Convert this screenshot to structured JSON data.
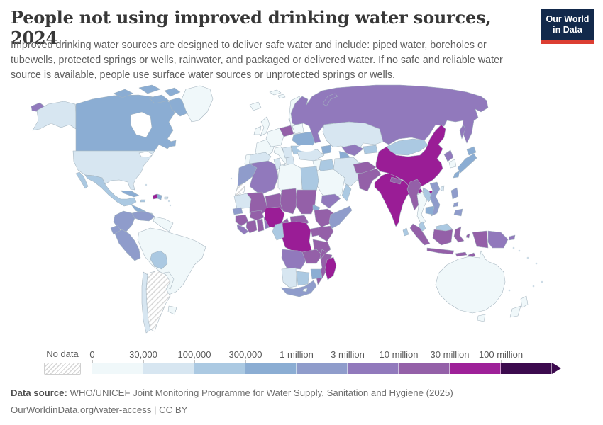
{
  "header": {
    "title": "People not using improved drinking water sources, 2024",
    "subtitle": "Improved drinking water sources are designed to deliver safe water and include: piped water, boreholes or tubewells, protected springs or wells, rainwater, and packaged or delivered water. If no safe and reliable water source is available, people use surface water sources or unprotected springs or wells.",
    "logo": {
      "line1": "Our World",
      "line2": "in Data",
      "bg_color": "#12294b",
      "accent_color": "#dc3e32"
    }
  },
  "legend": {
    "no_data_label": "No data",
    "bins": [
      {
        "label": "0",
        "color": "#f0f8fa"
      },
      {
        "label": "30,000",
        "color": "#d7e6f1"
      },
      {
        "label": "100,000",
        "color": "#abc9e2"
      },
      {
        "label": "300,000",
        "color": "#8badd3"
      },
      {
        "label": "1 million",
        "color": "#8f9ccb"
      },
      {
        "label": "3 million",
        "color": "#9179bc"
      },
      {
        "label": "10 million",
        "color": "#9460a8"
      },
      {
        "label": "30 million",
        "color": "#9e2199"
      },
      {
        "label": "100 million",
        "color": "#3c0a4e"
      }
    ]
  },
  "footer": {
    "source_label": "Data source:",
    "source_text": " WHO/UNICEF Joint Monitoring Programme for Water Supply, Sanitation and Hygiene (2025)",
    "license_text": "OurWorldinData.org/water-access | CC BY"
  },
  "map": {
    "ocean_color": "#ffffff",
    "border_color": "#a4b4bf",
    "regions": {
      "alaska": {
        "name": "United States (Alaska)",
        "color": "#d7e6f1"
      },
      "usa": {
        "name": "United States",
        "color": "#d7e6f1"
      },
      "canada": {
        "name": "Canada",
        "color": "#8badd3"
      },
      "canadian-arctic": {
        "name": "Canada (Arctic islands)",
        "color": "#8badd3"
      },
      "greenland": {
        "name": "Greenland",
        "color": "#f0f8fa"
      },
      "mexico": {
        "name": "Mexico",
        "color": "#abc9e2"
      },
      "central-america-north": {
        "name": "Guatemala-Honduras-Nicaragua",
        "color": "#8badd3"
      },
      "costa-rica-panama": {
        "name": "Costa Rica-Panama",
        "color": "#abc9e2"
      },
      "cuba": {
        "name": "Cuba",
        "color": "#8badd3"
      },
      "haiti": {
        "name": "Haiti",
        "color": "#9a1d96"
      },
      "dominican-republic": {
        "name": "Dominican Republic",
        "color": "#8badd3"
      },
      "jamaica": {
        "name": "Jamaica",
        "color": "#abc9e2"
      },
      "puerto-rico": {
        "name": "Puerto Rico",
        "color": "#d7e6f1"
      },
      "colombia": {
        "name": "Colombia",
        "color": "#8f9ccb"
      },
      "venezuela": {
        "name": "Venezuela",
        "color": "#8f9ccb"
      },
      "guyanas": {
        "name": "Guyana-Suriname",
        "color": "#f0f8fa"
      },
      "ecuador": {
        "name": "Ecuador",
        "color": "#8f9ccb"
      },
      "peru": {
        "name": "Peru",
        "color": "#8f9ccb"
      },
      "brazil": {
        "name": "Brazil",
        "color": "#f0f8fa"
      },
      "bolivia": {
        "name": "Bolivia",
        "color": "#abc9e2"
      },
      "paraguay": {
        "name": "Paraguay",
        "color": "#f0f8fa"
      },
      "uruguay": {
        "name": "Uruguay",
        "color": "#f0f8fa"
      },
      "chile": {
        "name": "Chile",
        "color": "#d7e6f1"
      },
      "argentina": {
        "name": "Argentina",
        "color": "no-data-hatch"
      },
      "iceland": {
        "name": "Iceland",
        "color": "#f0f8fa"
      },
      "united-kingdom": {
        "name": "United Kingdom",
        "color": "#f0f8fa"
      },
      "ireland": {
        "name": "Ireland",
        "color": "#f0f8fa"
      },
      "scandinavia": {
        "name": "Norway-Sweden-Finland",
        "color": "#f0f8fa"
      },
      "france": {
        "name": "France",
        "color": "#f0f8fa"
      },
      "spain": {
        "name": "Spain",
        "color": "#d7e6f1"
      },
      "portugal": {
        "name": "Portugal",
        "color": "#f0f8fa"
      },
      "central-europe": {
        "name": "Germany and Central Europe",
        "color": "#f0f8fa"
      },
      "italy": {
        "name": "Italy",
        "color": "#f0f8fa"
      },
      "poland": {
        "name": "Poland",
        "color": "#9460a8"
      },
      "baltics": {
        "name": "Baltic states",
        "color": "#f0f8fa"
      },
      "belarus": {
        "name": "Belarus",
        "color": "#f0f8fa"
      },
      "ukraine": {
        "name": "Ukraine",
        "color": "#8badd3"
      },
      "romania": {
        "name": "Romania",
        "color": "#abc9e2"
      },
      "balkans": {
        "name": "Balkans",
        "color": "#d7e6f1"
      },
      "greece": {
        "name": "Greece",
        "color": "#d7e6f1"
      },
      "turkey": {
        "name": "Turkey",
        "color": "#d7e6f1"
      },
      "caucasus": {
        "name": "Caucasus",
        "color": "#8badd3"
      },
      "russia": {
        "name": "Russia",
        "color": "#9179bc"
      },
      "kazakhstan": {
        "name": "Kazakhstan",
        "color": "#d7e6f1"
      },
      "uzbekistan": {
        "name": "Uzbekistan",
        "color": "#9179bc"
      },
      "turkmenistan": {
        "name": "Turkmenistan",
        "color": "#8badd3"
      },
      "kyrgyzstan-tajikistan": {
        "name": "Kyrgyzstan-Tajikistan",
        "color": "#abc9e2"
      },
      "levant": {
        "name": "Syria-Jordan-Israel",
        "color": "#f0f8fa"
      },
      "iraq": {
        "name": "Iraq",
        "color": "#abc9e2"
      },
      "iran": {
        "name": "Iran",
        "color": "#d7e6f1"
      },
      "saudi-arabia": {
        "name": "Saudi Arabia",
        "color": "#f0f8fa"
      },
      "yemen": {
        "name": "Yemen",
        "color": "#9179bc"
      },
      "oman": {
        "name": "Oman",
        "color": "#abc9e2"
      },
      "afghanistan": {
        "name": "Afghanistan",
        "color": "#9460a8"
      },
      "pakistan": {
        "name": "Pakistan",
        "color": "#9460a8"
      },
      "morocco": {
        "name": "Morocco",
        "color": "#8f9ccb"
      },
      "western-sahara": {
        "name": "Western Sahara",
        "color": "no-data-hatch"
      },
      "algeria": {
        "name": "Algeria",
        "color": "#9179bc"
      },
      "tunisia": {
        "name": "Tunisia",
        "color": "#d7e6f1"
      },
      "libya": {
        "name": "Libya",
        "color": "#f0f8fa"
      },
      "egypt": {
        "name": "Egypt",
        "color": "#abc9e2"
      },
      "mauritania": {
        "name": "Mauritania",
        "color": "#d7e6f1"
      },
      "mali": {
        "name": "Mali",
        "color": "#9460a8"
      },
      "niger": {
        "name": "Niger",
        "color": "#9460a8"
      },
      "chad": {
        "name": "Chad",
        "color": "#9460a8"
      },
      "sudan": {
        "name": "Sudan",
        "color": "#9460a8"
      },
      "eritrea": {
        "name": "Eritrea",
        "color": "#8badd3"
      },
      "senegal": {
        "name": "Senegal",
        "color": "#8f9ccb"
      },
      "guinea": {
        "name": "Guinea",
        "color": "#9460a8"
      },
      "sierra-leone-liberia": {
        "name": "Sierra Leone-Liberia",
        "color": "#9179bc"
      },
      "cote-divoire": {
        "name": "Cote d'Ivoire",
        "color": "#9460a8"
      },
      "ghana": {
        "name": "Ghana",
        "color": "#9460a8"
      },
      "togo-benin": {
        "name": "Togo-Benin",
        "color": "#9179bc"
      },
      "burkina-faso": {
        "name": "Burkina Faso",
        "color": "#9460a8"
      },
      "nigeria": {
        "name": "Nigeria",
        "color": "#9a1d96"
      },
      "cameroon": {
        "name": "Cameroon",
        "color": "#9460a8"
      },
      "central-african-republic": {
        "name": "Central African Republic",
        "color": "#9460a8"
      },
      "ethiopia": {
        "name": "Ethiopia",
        "color": "#9460a8"
      },
      "somalia": {
        "name": "Somalia",
        "color": "#8f9ccb"
      },
      "uganda": {
        "name": "Uganda",
        "color": "#9460a8"
      },
      "kenya": {
        "name": "Kenya",
        "color": "#9460a8"
      },
      "democratic-republic-of-congo": {
        "name": "Democratic Republic of Congo",
        "color": "#9a1d96"
      },
      "gabon-congo": {
        "name": "Gabon-Congo",
        "color": "#abc9e2"
      },
      "tanzania": {
        "name": "Tanzania",
        "color": "#9460a8"
      },
      "angola": {
        "name": "Angola",
        "color": "#9179bc"
      },
      "zambia": {
        "name": "Zambia",
        "color": "#9460a8"
      },
      "malawi": {
        "name": "Malawi",
        "color": "#9460a8"
      },
      "mozambique": {
        "name": "Mozambique",
        "color": "#9460a8"
      },
      "zimbabwe": {
        "name": "Zimbabwe",
        "color": "#8badd3"
      },
      "namibia": {
        "name": "Namibia",
        "color": "#d7e6f1"
      },
      "botswana": {
        "name": "Botswana",
        "color": "#abc9e2"
      },
      "south-africa": {
        "name": "South Africa",
        "color": "#8f9ccb"
      },
      "lesotho": {
        "name": "Lesotho",
        "color": "#f0f8fa"
      },
      "madagascar": {
        "name": "Madagascar",
        "color": "#9a1d96"
      },
      "india": {
        "name": "India",
        "color": "#9a1d96"
      },
      "nepal": {
        "name": "Nepal",
        "color": "#9460a8"
      },
      "bangladesh": {
        "name": "Bangladesh",
        "color": "#9179bc"
      },
      "sri-lanka": {
        "name": "Sri Lanka",
        "color": "#abc9e2"
      },
      "china": {
        "name": "China",
        "color": "#9a1d96"
      },
      "mongolia": {
        "name": "Mongolia",
        "color": "#abc9e2"
      },
      "taiwan": {
        "name": "Taiwan",
        "color": "#d7e6f1"
      },
      "north-korea": {
        "name": "North Korea",
        "color": "#9179bc"
      },
      "south-korea": {
        "name": "South Korea",
        "color": "#f0f8fa"
      },
      "japan": {
        "name": "Japan",
        "color": "#8badd3"
      },
      "myanmar": {
        "name": "Myanmar",
        "color": "#9460a8"
      },
      "thailand": {
        "name": "Thailand",
        "color": "#f0f8fa"
      },
      "laos": {
        "name": "Laos",
        "color": "#abc9e2"
      },
      "vietnam": {
        "name": "Vietnam",
        "color": "#8f9ccb"
      },
      "cambodia": {
        "name": "Cambodia",
        "color": "#8badd3"
      },
      "malaysia": {
        "name": "Malaysia",
        "color": "#abc9e2"
      },
      "indonesia": {
        "name": "Indonesia",
        "color": "#9460a8"
      },
      "philippines": {
        "name": "Philippines",
        "color": "#8f9ccb"
      },
      "papua-new-guinea": {
        "name": "Papua New Guinea",
        "color": "#9179bc"
      },
      "australia": {
        "name": "Australia",
        "color": "#f0f8fa"
      },
      "new-zealand": {
        "name": "New Zealand",
        "color": "#f0f8fa"
      },
      "water": {
        "name": "Water bodies",
        "color": "#ffffff"
      }
    }
  },
  "chart_data": {
    "type": "choropleth",
    "title": "People not using improved drinking water sources, 2024",
    "unit": "people",
    "legend_position": "bottom",
    "legend_bins": [
      "0",
      "30,000",
      "100,000",
      "300,000",
      "1 million",
      "3 million",
      "10 million",
      "30 million",
      "100 million"
    ],
    "bin_colors": [
      "#f0f8fa",
      "#d7e6f1",
      "#abc9e2",
      "#8badd3",
      "#8f9ccb",
      "#9179bc",
      "#9460a8",
      "#9e2199",
      "#3c0a4e"
    ],
    "bin_ranges": [
      "0–30,000",
      "30,000–100,000",
      "100,000–300,000",
      "300,000–1 million",
      "1–3 million",
      "3–10 million",
      "10–30 million",
      "30–100 million",
      "100 million+"
    ],
    "no_data_label": "No data",
    "countries": {
      "United States": "30,000–100,000",
      "Canada": "300,000–1 million",
      "Greenland": "0–30,000",
      "Mexico": "100,000–300,000",
      "Cuba": "300,000–1 million",
      "Haiti": "30–100 million estimate bin color: 30–100 million",
      "Dominican Republic": "300,000–1 million",
      "Colombia": "1–3 million",
      "Venezuela": "1–3 million",
      "Ecuador": "1–3 million",
      "Peru": "1–3 million",
      "Brazil": "0–30,000",
      "Bolivia": "100,000–300,000",
      "Paraguay": "0–30,000",
      "Uruguay": "0–30,000",
      "Chile": "30,000–100,000",
      "Argentina": "No data",
      "United Kingdom": "0–30,000",
      "France": "0–30,000",
      "Spain": "30,000–100,000",
      "Portugal": "0–30,000",
      "Germany": "0–30,000",
      "Italy": "0–30,000",
      "Poland": "10–30 million",
      "Ukraine": "300,000–1 million",
      "Romania": "100,000–300,000",
      "Greece": "30,000–100,000",
      "Turkey": "30,000–100,000",
      "Russia": "3–10 million",
      "Kazakhstan": "30,000–100,000",
      "Uzbekistan": "3–10 million",
      "Turkmenistan": "300,000–1 million",
      "Iran": "30,000–100,000",
      "Iraq": "100,000–300,000",
      "Saudi Arabia": "0–30,000",
      "Yemen": "3–10 million",
      "Oman": "100,000–300,000",
      "Morocco": "1–3 million",
      "Western Sahara": "No data",
      "Algeria": "3–10 million",
      "Tunisia": "30,000–100,000",
      "Libya": "0–30,000",
      "Egypt": "100,000–300,000",
      "Mauritania": "30,000–100,000",
      "Senegal": "1–3 million",
      "Guinea": "10–30 million",
      "Sierra Leone": "3–10 million",
      "Liberia": "3–10 million",
      "Cote d'Ivoire": "10–30 million",
      "Ghana": "10–30 million",
      "Benin": "3–10 million",
      "Burkina Faso": "10–30 million",
      "Mali": "10–30 million",
      "Niger": "10–30 million",
      "Chad": "10–30 million",
      "Sudan": "10–30 million",
      "Eritrea": "300,000–1 million",
      "Nigeria": "30–100 million",
      "Cameroon": "10–30 million",
      "Central African Republic": "10–30 million",
      "Ethiopia": "10–30 million",
      "Somalia": "1–3 million",
      "Uganda": "10–30 million",
      "Kenya": "10–30 million",
      "Democratic Republic of Congo": "30–100 million",
      "Gabon": "100,000–300,000",
      "Tanzania": "10–30 million",
      "Angola": "3–10 million",
      "Zambia": "10–30 million",
      "Malawi": "10–30 million",
      "Mozambique": "10–30 million",
      "Zimbabwe": "300,000–1 million",
      "Namibia": "30,000–100,000",
      "Botswana": "100,000–300,000",
      "South Africa": "1–3 million",
      "Madagascar": "30–100 million",
      "Afghanistan": "10–30 million",
      "Pakistan": "10–30 million",
      "India": "30–100 million",
      "Nepal": "10–30 million",
      "Bangladesh": "3–10 million",
      "Sri Lanka": "100,000–300,000",
      "China": "30–100 million",
      "Mongolia": "100,000–300,000",
      "North Korea": "3–10 million",
      "South Korea": "0–30,000",
      "Japan": "300,000–1 million",
      "Myanmar": "10–30 million",
      "Thailand": "0–30,000",
      "Laos": "100,000–300,000",
      "Vietnam": "1–3 million",
      "Cambodia": "300,000–1 million",
      "Malaysia": "100,000–300,000",
      "Indonesia": "10–30 million",
      "Philippines": "1–3 million",
      "Papua New Guinea": "3–10 million",
      "Australia": "0–30,000",
      "New Zealand": "0–30,000"
    }
  }
}
